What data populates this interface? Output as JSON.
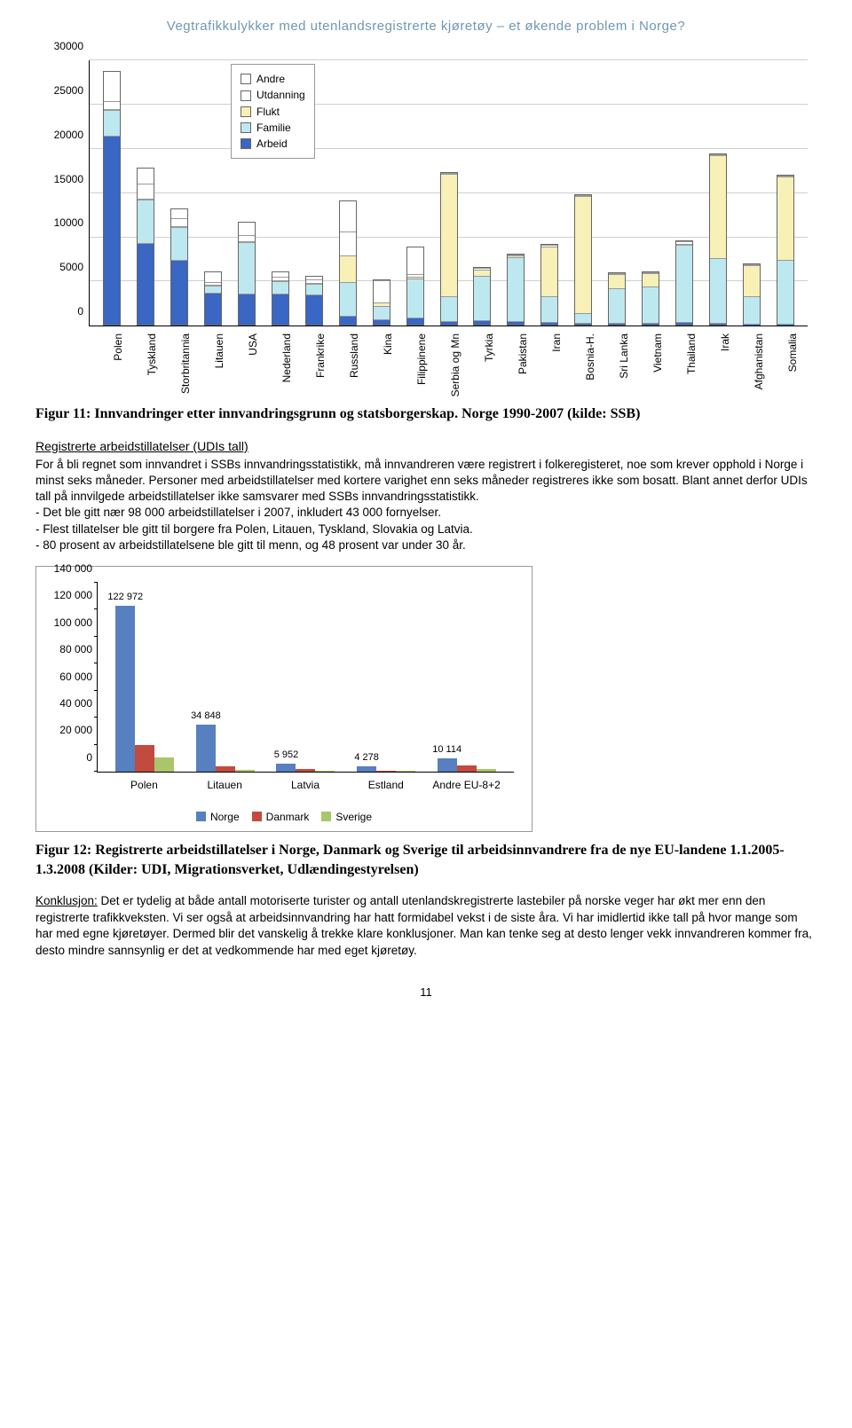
{
  "header": "Vegtrafikkulykker med utenlandsregistrerte kjøretøy – et økende problem i Norge?",
  "page_number": "11",
  "chart1": {
    "type": "stacked-bar",
    "ylim": [
      0,
      30000
    ],
    "ytick_step": 5000,
    "yticks": [
      "0",
      "5000",
      "10000",
      "15000",
      "20000",
      "25000",
      "30000"
    ],
    "background": "#ffffff",
    "grid_color": "#cfcfcf",
    "label_fontsize": 12,
    "legend": [
      {
        "label": "Andre",
        "color": "#ffffff"
      },
      {
        "label": "Utdanning",
        "color": "#ffffff"
      },
      {
        "label": "Flukt",
        "color": "#f7f0b7"
      },
      {
        "label": "Familie",
        "color": "#bee8ef"
      },
      {
        "label": "Arbeid",
        "color": "#3a66c4"
      }
    ],
    "colors": {
      "arbeid": "#3a66c4",
      "familie": "#bee8ef",
      "flukt": "#f7f0b7",
      "utdanning": "#ffffff",
      "andre": "#ffffff"
    },
    "categories": [
      "Polen",
      "Tyskland",
      "Storbritannia",
      "Litauen",
      "USA",
      "Nederland",
      "Frankrike",
      "Russland",
      "Kina",
      "Filippinene",
      "Serbia og Mn",
      "Tyrkia",
      "Pakistan",
      "Iran",
      "Bosnia-H.",
      "Sri Lanka",
      "Vietnam",
      "Thailand",
      "Irak",
      "Afghanistan",
      "Somalia"
    ],
    "series": [
      {
        "arbeid": 21500,
        "familie": 3000,
        "flukt": 0,
        "utdanning": 900,
        "andre": 3400
      },
      {
        "arbeid": 9300,
        "familie": 5000,
        "flukt": 0,
        "utdanning": 1800,
        "andre": 1800
      },
      {
        "arbeid": 7400,
        "familie": 3800,
        "flukt": 0,
        "utdanning": 900,
        "andre": 1200
      },
      {
        "arbeid": 3700,
        "familie": 900,
        "flukt": 0,
        "utdanning": 300,
        "andre": 1200
      },
      {
        "arbeid": 3500,
        "familie": 6000,
        "flukt": 0,
        "utdanning": 700,
        "andre": 1600
      },
      {
        "arbeid": 3600,
        "familie": 1500,
        "flukt": 0,
        "utdanning": 400,
        "andre": 600
      },
      {
        "arbeid": 3500,
        "familie": 1300,
        "flukt": 0,
        "utdanning": 400,
        "andre": 400
      },
      {
        "arbeid": 900,
        "familie": 3900,
        "flukt": 3100,
        "utdanning": 2700,
        "andre": 3600
      },
      {
        "arbeid": 600,
        "familie": 1500,
        "flukt": 400,
        "utdanning": 2600,
        "andre": 100
      },
      {
        "arbeid": 700,
        "familie": 4600,
        "flukt": 200,
        "utdanning": 300,
        "andre": 3200
      },
      {
        "arbeid": 300,
        "familie": 2900,
        "flukt": 14000,
        "utdanning": 100,
        "andre": 100
      },
      {
        "arbeid": 400,
        "familie": 5200,
        "flukt": 700,
        "utdanning": 200,
        "andre": 100
      },
      {
        "arbeid": 300,
        "familie": 7400,
        "flukt": 200,
        "utdanning": 200,
        "andre": 100
      },
      {
        "arbeid": 200,
        "familie": 3000,
        "flukt": 5800,
        "utdanning": 200,
        "andre": 100
      },
      {
        "arbeid": 100,
        "familie": 1100,
        "flukt": 13500,
        "utdanning": 100,
        "andre": 100
      },
      {
        "arbeid": 100,
        "familie": 4100,
        "flukt": 1600,
        "utdanning": 100,
        "andre": 100
      },
      {
        "arbeid": 100,
        "familie": 4300,
        "flukt": 1500,
        "utdanning": 100,
        "andre": 100
      },
      {
        "arbeid": 200,
        "familie": 8900,
        "flukt": 200,
        "utdanning": 300,
        "andre": 100
      },
      {
        "arbeid": 100,
        "familie": 7400,
        "flukt": 11800,
        "utdanning": 100,
        "andre": 50
      },
      {
        "arbeid": 50,
        "familie": 3200,
        "flukt": 3700,
        "utdanning": 50,
        "andre": 50
      },
      {
        "arbeid": 50,
        "familie": 7300,
        "flukt": 9600,
        "utdanning": 50,
        "andre": 50
      }
    ]
  },
  "fig11_caption": "Figur 11: Innvandringer etter innvandringsgrunn og statsborgerskap. Norge 1990-2007 (kilde: SSB)",
  "udi_title": "Registrerte arbeidstillatelser (UDIs tall)",
  "udi_para1": "For å bli regnet som innvandret i SSBs innvandringsstatistikk, må innvandreren være registrert i folkeregisteret, noe som krever opphold i Norge i minst seks måneder. Personer med arbeidstillatelser med kortere varighet enn seks måneder registreres ikke som bosatt. Blant annet derfor UDIs tall på innvilgede arbeidstillatelser ikke samsvarer med SSBs innvandringsstatistikk.",
  "udi_b1": "- Det ble gitt nær 98 000 arbeidstillatelser i 2007, inkludert 43 000 fornyelser.",
  "udi_b2": "- Flest tillatelser ble gitt til borgere fra Polen, Litauen, Tyskland, Slovakia og Latvia.",
  "udi_b3": "- 80 prosent av arbeidstillatelsene ble gitt til menn, og 48 prosent var under 30 år.",
  "chart2": {
    "type": "grouped-bar",
    "ylim": [
      0,
      140000
    ],
    "ytick_step": 20000,
    "yticks": [
      "0",
      "20 000",
      "40 000",
      "60 000",
      "80 000",
      "100 000",
      "120 000",
      "140 000"
    ],
    "categories": [
      "Polen",
      "Litauen",
      "Latvia",
      "Estland",
      "Andre EU-8+2"
    ],
    "series_labels": [
      "Norge",
      "Danmark",
      "Sverige"
    ],
    "colors": {
      "Norge": "#5680bf",
      "Danmark": "#c24a3e",
      "Sverige": "#a9c66b"
    },
    "data": [
      {
        "Norge": 122972,
        "Danmark": 20000,
        "Sverige": 10500,
        "label": "122 972"
      },
      {
        "Norge": 34848,
        "Danmark": 4200,
        "Sverige": 1400,
        "label": "34 848"
      },
      {
        "Norge": 5952,
        "Danmark": 1800,
        "Sverige": 700,
        "label": "5 952"
      },
      {
        "Norge": 4278,
        "Danmark": 900,
        "Sverige": 500,
        "label": "4 278"
      },
      {
        "Norge": 10114,
        "Danmark": 4600,
        "Sverige": 1800,
        "label": "10 114"
      }
    ],
    "label_fontsize": 12,
    "background": "#ffffff"
  },
  "fig12_caption": "Figur 12: Registrerte arbeidstillatelser i Norge, Danmark og Sverige til arbeidsinnvandrere fra de nye EU-landene 1.1.2005-1.3.2008  (Kilder: UDI, Migrationsverket, Udlændingestyrelsen)",
  "konk_label": "Konklusjon:",
  "konk_text": " Det er tydelig at både antall motoriserte turister og antall utenlandskregistrerte lastebiler på norske veger har økt mer enn den registrerte trafikkveksten. Vi ser også at arbeidsinnvandring har hatt formidabel vekst i de siste åra. Vi har imidlertid ikke tall på hvor mange som har med egne kjøretøyer. Dermed blir det vanskelig å trekke klare konklusjoner. Man kan tenke seg at desto lenger vekk innvandreren kommer fra, desto mindre sannsynlig er det at vedkommende har med eget kjøretøy."
}
